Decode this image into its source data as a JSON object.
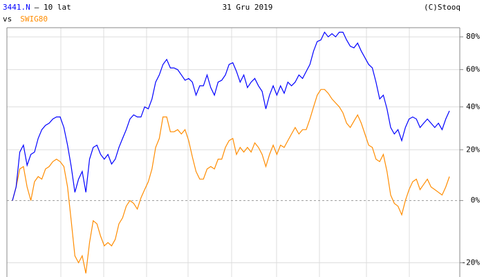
{
  "chart_data": {
    "type": "line",
    "period": "– 10 lat",
    "date": "31 Gru 2019",
    "source": "(C)Stooq",
    "vs_label": "vs",
    "log_scale": true,
    "grid": true,
    "ylim": [
      -24,
      86
    ],
    "yticks": [
      {
        "value": 80,
        "label": "80%"
      },
      {
        "value": 60,
        "label": "60%"
      },
      {
        "value": 40,
        "label": "40%"
      },
      {
        "value": 20,
        "label": "20%"
      },
      {
        "value": 0,
        "label": "0%"
      },
      {
        "value": -20,
        "label": "-20%"
      }
    ],
    "series": [
      {
        "name": "3441.N",
        "color": "#0000ff",
        "values": [
          0,
          5,
          19,
          22,
          13.5,
          18,
          19,
          25,
          29,
          31,
          32,
          34,
          35,
          35,
          30,
          22,
          13,
          3,
          8,
          11,
          3,
          16,
          21,
          22,
          18,
          16,
          18,
          14,
          16,
          21,
          25,
          29,
          34,
          36,
          35,
          35,
          40,
          39,
          44,
          53,
          57,
          63,
          66,
          61,
          61,
          60,
          57,
          54,
          55,
          53,
          46,
          51,
          51,
          57,
          50,
          46,
          53,
          54,
          57,
          63,
          64,
          59,
          53,
          57,
          50,
          53,
          55,
          51,
          48,
          39,
          46,
          51,
          46,
          51,
          47,
          53,
          51,
          53,
          57,
          55,
          59,
          63,
          71,
          77,
          78,
          83,
          80,
          82,
          80,
          83,
          83,
          78,
          74,
          73,
          76,
          71,
          67,
          63,
          61,
          53,
          44,
          46,
          39,
          30,
          27,
          29,
          24,
          30,
          34,
          35,
          34,
          30,
          32,
          34,
          32,
          30,
          32,
          29,
          34,
          38
        ]
      },
      {
        "name": "SWIG80",
        "color": "#ff8c00",
        "values": [
          0,
          5,
          12,
          13,
          5,
          0,
          7,
          9,
          8,
          12,
          13,
          15,
          16,
          15,
          13,
          5,
          -7,
          -18,
          -20,
          -18,
          -23,
          -14,
          -7,
          -8,
          -12,
          -15,
          -14,
          -15,
          -13,
          -8,
          -6,
          -2,
          0,
          -1,
          -3,
          1,
          4,
          7,
          12,
          21,
          25,
          35,
          35,
          28,
          28,
          29,
          27,
          29,
          24,
          17,
          11,
          8,
          8,
          12,
          13,
          12,
          16,
          16,
          21,
          24,
          25,
          18,
          21,
          19,
          21,
          19,
          23,
          21,
          18,
          13,
          18,
          22,
          18,
          22,
          21,
          24,
          27,
          30,
          27,
          29,
          29,
          34,
          40,
          46,
          49,
          49,
          47,
          44,
          42,
          40,
          37,
          32,
          30,
          33,
          36,
          32,
          27,
          22,
          21,
          16,
          15,
          18,
          11,
          2,
          -1,
          -2,
          -5,
          0,
          4,
          7,
          8,
          4,
          6,
          8,
          5,
          4,
          3,
          2,
          5,
          9
        ]
      }
    ]
  }
}
